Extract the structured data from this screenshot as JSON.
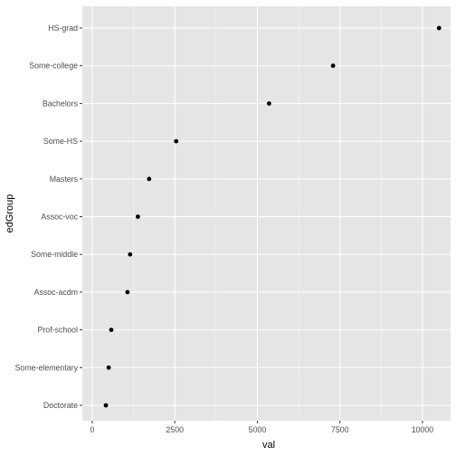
{
  "chart_data": {
    "type": "scatter",
    "xlabel": "val",
    "ylabel": "edGroup",
    "xlim": [
      -300,
      10850
    ],
    "x_ticks": [
      0,
      2500,
      5000,
      7500,
      10000
    ],
    "x_tick_labels": [
      "0",
      "2500",
      "5000",
      "7500",
      "10000"
    ],
    "categories": [
      "HS-grad",
      "Some-college",
      "Bachelors",
      "Some-HS",
      "Masters",
      "Assoc-voc",
      "Some-middle",
      "Assoc-acdm",
      "Prof-school",
      "Some-elementary",
      "Doctorate"
    ],
    "values": [
      10501,
      7291,
      5355,
      2541,
      1723,
      1382,
      1147,
      1067,
      576,
      498,
      413
    ],
    "grid": true,
    "legend": "none",
    "colors": {
      "panel_background": "#e5e5e5",
      "grid_major": "#ffffff",
      "point": "#000000",
      "tick_text": "#4d4d4d",
      "tick_mark": "#333333"
    }
  }
}
